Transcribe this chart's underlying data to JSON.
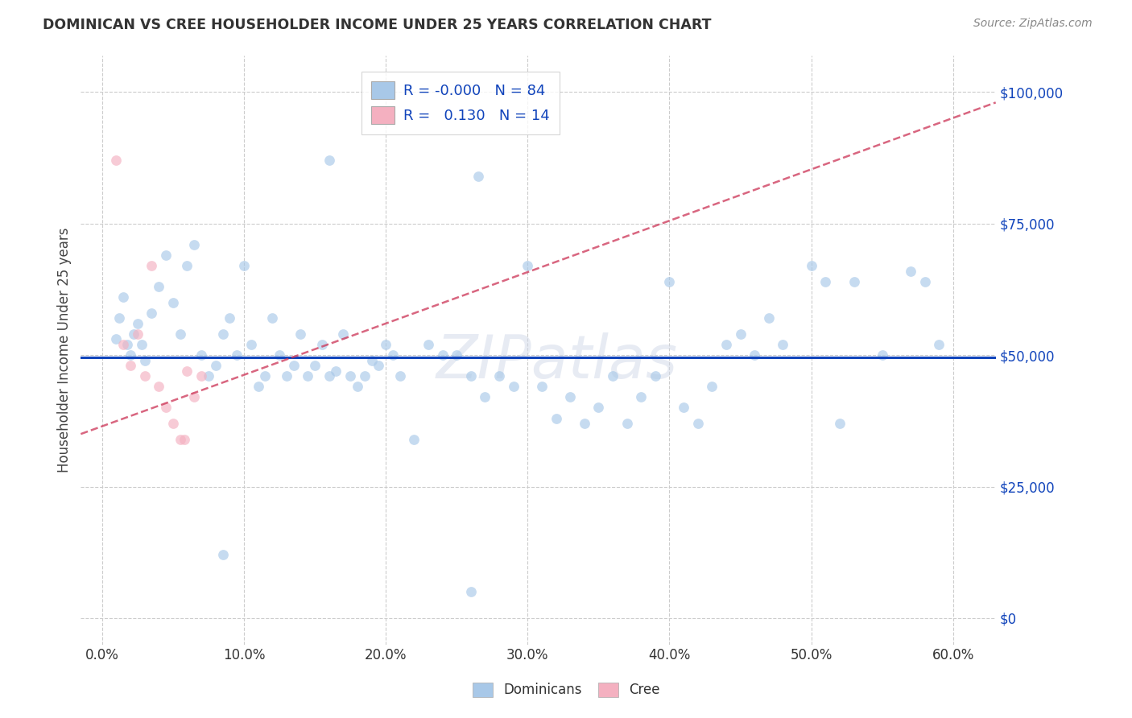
{
  "title": "DOMINICAN VS CREE HOUSEHOLDER INCOME UNDER 25 YEARS CORRELATION CHART",
  "source": "Source: ZipAtlas.com",
  "ylabel": "Householder Income Under 25 years",
  "xlabel_ticks": [
    "0.0%",
    "10.0%",
    "20.0%",
    "30.0%",
    "40.0%",
    "50.0%",
    "60.0%"
  ],
  "xlabel_vals": [
    0.0,
    10.0,
    20.0,
    30.0,
    40.0,
    50.0,
    60.0
  ],
  "ylabel_ticks": [
    "$0",
    "$25,000",
    "$50,000",
    "$75,000",
    "$100,000"
  ],
  "ylabel_vals": [
    0,
    25000,
    50000,
    75000,
    100000
  ],
  "xlim": [
    -1.5,
    63
  ],
  "ylim": [
    -5000,
    107000
  ],
  "dominican_scatter_color": "#a8c8e8",
  "cree_scatter_color": "#f4b0c0",
  "dominican_line_color": "#1144bb",
  "cree_line_color": "#cc3355",
  "dominican_line": {
    "x0": -1.5,
    "y0": 49500,
    "x1": 63,
    "y1": 49500
  },
  "cree_line": {
    "x0": -1.5,
    "y0": 35000,
    "x1": 63,
    "y1": 98000
  },
  "watermark": "ZIPatlas",
  "dominican_points": [
    [
      1.0,
      53000
    ],
    [
      1.2,
      57000
    ],
    [
      1.5,
      61000
    ],
    [
      1.8,
      52000
    ],
    [
      2.0,
      50000
    ],
    [
      2.2,
      54000
    ],
    [
      2.5,
      56000
    ],
    [
      2.8,
      52000
    ],
    [
      3.0,
      49000
    ],
    [
      3.5,
      58000
    ],
    [
      4.0,
      63000
    ],
    [
      4.5,
      69000
    ],
    [
      5.0,
      60000
    ],
    [
      5.5,
      54000
    ],
    [
      6.0,
      67000
    ],
    [
      6.5,
      71000
    ],
    [
      7.0,
      50000
    ],
    [
      7.5,
      46000
    ],
    [
      8.0,
      48000
    ],
    [
      8.5,
      54000
    ],
    [
      9.0,
      57000
    ],
    [
      9.5,
      50000
    ],
    [
      10.0,
      67000
    ],
    [
      10.5,
      52000
    ],
    [
      11.0,
      44000
    ],
    [
      11.5,
      46000
    ],
    [
      12.0,
      57000
    ],
    [
      12.5,
      50000
    ],
    [
      13.0,
      46000
    ],
    [
      13.5,
      48000
    ],
    [
      14.0,
      54000
    ],
    [
      14.5,
      46000
    ],
    [
      15.0,
      48000
    ],
    [
      15.5,
      52000
    ],
    [
      16.0,
      46000
    ],
    [
      16.5,
      47000
    ],
    [
      17.0,
      54000
    ],
    [
      17.5,
      46000
    ],
    [
      18.0,
      44000
    ],
    [
      18.5,
      46000
    ],
    [
      19.0,
      49000
    ],
    [
      19.5,
      48000
    ],
    [
      20.0,
      52000
    ],
    [
      20.5,
      50000
    ],
    [
      21.0,
      46000
    ],
    [
      22.0,
      34000
    ],
    [
      23.0,
      52000
    ],
    [
      24.0,
      50000
    ],
    [
      25.0,
      50000
    ],
    [
      26.0,
      46000
    ],
    [
      27.0,
      42000
    ],
    [
      28.0,
      46000
    ],
    [
      29.0,
      44000
    ],
    [
      30.0,
      67000
    ],
    [
      31.0,
      44000
    ],
    [
      32.0,
      38000
    ],
    [
      33.0,
      42000
    ],
    [
      34.0,
      37000
    ],
    [
      35.0,
      40000
    ],
    [
      36.0,
      46000
    ],
    [
      37.0,
      37000
    ],
    [
      38.0,
      42000
    ],
    [
      39.0,
      46000
    ],
    [
      40.0,
      64000
    ],
    [
      41.0,
      40000
    ],
    [
      42.0,
      37000
    ],
    [
      43.0,
      44000
    ],
    [
      44.0,
      52000
    ],
    [
      45.0,
      54000
    ],
    [
      46.0,
      50000
    ],
    [
      47.0,
      57000
    ],
    [
      48.0,
      52000
    ],
    [
      50.0,
      67000
    ],
    [
      51.0,
      64000
    ],
    [
      52.0,
      37000
    ],
    [
      53.0,
      64000
    ],
    [
      55.0,
      50000
    ],
    [
      57.0,
      66000
    ],
    [
      58.0,
      64000
    ],
    [
      59.0,
      52000
    ],
    [
      8.5,
      12000
    ],
    [
      26.0,
      5000
    ],
    [
      16.0,
      87000
    ],
    [
      26.5,
      84000
    ]
  ],
  "cree_points": [
    [
      1.0,
      87000
    ],
    [
      1.5,
      52000
    ],
    [
      2.0,
      48000
    ],
    [
      2.5,
      54000
    ],
    [
      3.0,
      46000
    ],
    [
      3.5,
      67000
    ],
    [
      4.0,
      44000
    ],
    [
      4.5,
      40000
    ],
    [
      5.0,
      37000
    ],
    [
      5.5,
      34000
    ],
    [
      5.8,
      34000
    ],
    [
      6.0,
      47000
    ],
    [
      6.5,
      42000
    ],
    [
      7.0,
      46000
    ]
  ],
  "grid_color": "#cccccc",
  "bg_color": "#ffffff",
  "marker_size": 85,
  "marker_alpha": 0.65
}
